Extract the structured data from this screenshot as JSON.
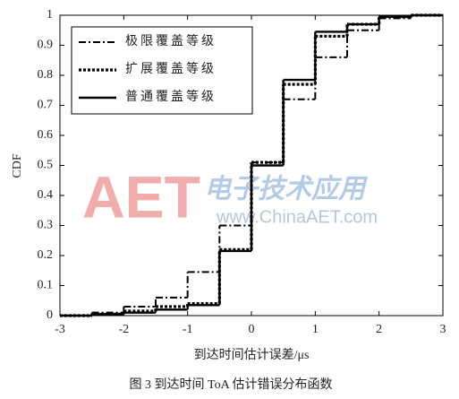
{
  "chart_data": {
    "type": "step",
    "ylabel": "CDF",
    "xlabel": "到达时间估计误差/μs",
    "caption": "图 3  到达时间 ToA 估计错误分布函数",
    "watermark": [
      "AET",
      "电子技术应用",
      "www.ChinaAET.com"
    ],
    "x": [
      -3,
      -2.5,
      -2,
      -1.5,
      -1,
      -0.5,
      0,
      0.5,
      1,
      1.5,
      2,
      2.5,
      3
    ],
    "series": [
      {
        "name": "极限覆盖等级",
        "color": "#000000",
        "dash": "dashdot",
        "values": [
          0,
          0.01,
          0.03,
          0.06,
          0.145,
          0.3,
          0.51,
          0.72,
          0.86,
          0.95,
          0.99,
          1,
          1
        ]
      },
      {
        "name": "扩展覆盖等级",
        "color": "#000000",
        "dash": "dotted",
        "values": [
          0,
          0.005,
          0.015,
          0.03,
          0.04,
          0.22,
          0.51,
          0.77,
          0.93,
          0.97,
          0.995,
          1,
          1
        ]
      },
      {
        "name": "普通覆盖等级",
        "color": "#000000",
        "dash": "solid",
        "values": [
          0,
          0.005,
          0.01,
          0.02,
          0.035,
          0.215,
          0.5,
          0.785,
          0.945,
          0.97,
          0.995,
          1,
          1
        ]
      }
    ],
    "xlim": [
      -3,
      3
    ],
    "xticks": [
      -3,
      -2,
      -1,
      0,
      1,
      2,
      3
    ],
    "ylim": [
      0,
      1
    ],
    "yticks": [
      0,
      0.1,
      0.2,
      0.3,
      0.4,
      0.5,
      0.6,
      0.7,
      0.8,
      0.9,
      1
    ],
    "grid": false,
    "legend": "upper-left"
  }
}
